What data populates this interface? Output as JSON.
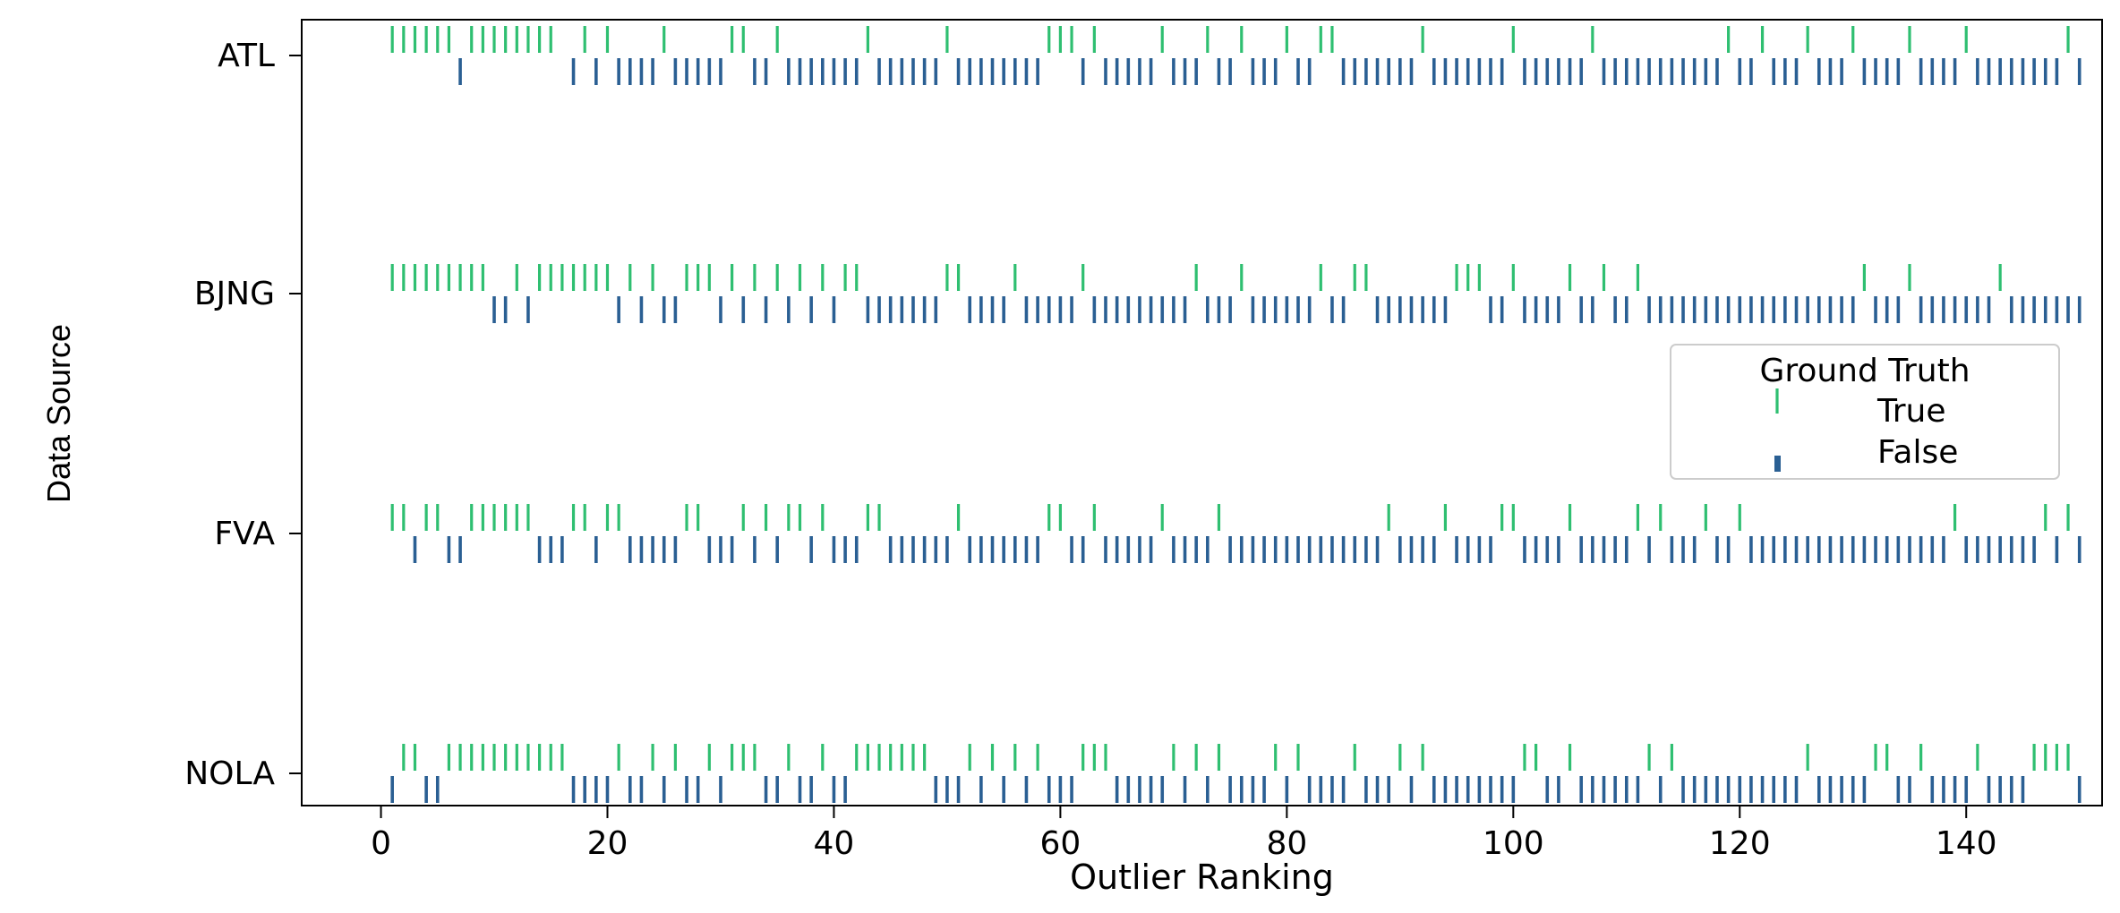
{
  "chart_data": {
    "type": "strip",
    "xlabel": "Outlier Ranking",
    "ylabel": "Data Source",
    "xlim": [
      -7,
      152
    ],
    "x_ticks": [
      0,
      20,
      40,
      60,
      80,
      100,
      120,
      140
    ],
    "categories": [
      "ATL",
      "BJNG",
      "FVA",
      "NOLA"
    ],
    "legend": {
      "title": "Ground Truth",
      "placement": "right",
      "entries": [
        {
          "label": "True",
          "color": "#2fbf71"
        },
        {
          "label": "False",
          "color": "#2a5f93"
        }
      ]
    },
    "series": [
      {
        "category": "ATL",
        "true": [
          1,
          2,
          3,
          4,
          5,
          6,
          8,
          9,
          10,
          11,
          12,
          13,
          14,
          15,
          18,
          20,
          25,
          31,
          32,
          35,
          43,
          50,
          59,
          60,
          61,
          63,
          69,
          73,
          76,
          80,
          83,
          84,
          92,
          100,
          107,
          119,
          122,
          126,
          130,
          135,
          140,
          149
        ],
        "false": [
          7,
          17,
          19,
          21,
          22,
          23,
          24,
          26,
          27,
          28,
          29,
          30,
          33,
          34,
          36,
          37,
          38,
          39,
          40,
          41,
          42,
          44,
          45,
          46,
          47,
          48,
          49,
          51,
          52,
          53,
          54,
          55,
          56,
          57,
          58,
          62,
          64,
          65,
          66,
          67,
          68,
          70,
          71,
          72,
          74,
          75,
          77,
          78,
          79,
          81,
          82,
          85,
          86,
          87,
          88,
          89,
          90,
          91,
          93,
          94,
          95,
          96,
          97,
          98,
          99,
          101,
          102,
          103,
          104,
          105,
          106,
          108,
          109,
          110,
          111,
          112,
          113,
          114,
          115,
          116,
          117,
          118,
          120,
          121,
          123,
          124,
          125,
          127,
          128,
          129,
          131,
          132,
          133,
          134,
          136,
          137,
          138,
          139,
          141,
          142,
          143,
          144,
          145,
          146,
          147,
          148,
          150
        ]
      },
      {
        "category": "BJNG",
        "true": [
          1,
          2,
          3,
          4,
          5,
          6,
          7,
          8,
          9,
          12,
          14,
          15,
          16,
          17,
          18,
          19,
          20,
          22,
          24,
          27,
          28,
          29,
          31,
          33,
          35,
          37,
          39,
          41,
          42,
          50,
          51,
          56,
          62,
          72,
          76,
          83,
          86,
          87,
          95,
          96,
          97,
          100,
          105,
          108,
          111,
          131,
          135,
          143
        ],
        "false": [
          10,
          11,
          13,
          21,
          23,
          25,
          26,
          30,
          32,
          34,
          36,
          38,
          40,
          43,
          44,
          45,
          46,
          47,
          48,
          49,
          52,
          53,
          54,
          55,
          57,
          58,
          59,
          60,
          61,
          63,
          64,
          65,
          66,
          67,
          68,
          69,
          70,
          71,
          73,
          74,
          75,
          77,
          78,
          79,
          80,
          81,
          82,
          84,
          85,
          88,
          89,
          90,
          91,
          92,
          93,
          94,
          98,
          99,
          101,
          102,
          103,
          104,
          106,
          107,
          109,
          110,
          112,
          113,
          114,
          115,
          116,
          117,
          118,
          119,
          120,
          121,
          122,
          123,
          124,
          125,
          126,
          127,
          128,
          129,
          130,
          132,
          133,
          134,
          136,
          137,
          138,
          139,
          140,
          141,
          142,
          144,
          145,
          146,
          147,
          148,
          149,
          150
        ]
      },
      {
        "category": "FVA",
        "true": [
          1,
          2,
          4,
          5,
          8,
          9,
          10,
          11,
          12,
          13,
          17,
          18,
          20,
          21,
          27,
          28,
          32,
          34,
          36,
          37,
          39,
          43,
          44,
          51,
          59,
          60,
          63,
          69,
          74,
          89,
          94,
          99,
          100,
          105,
          111,
          113,
          117,
          120,
          139,
          147,
          149
        ],
        "false": [
          3,
          6,
          7,
          14,
          15,
          16,
          19,
          22,
          23,
          24,
          25,
          26,
          29,
          30,
          31,
          33,
          35,
          38,
          40,
          41,
          42,
          45,
          46,
          47,
          48,
          49,
          50,
          52,
          53,
          54,
          55,
          56,
          57,
          58,
          61,
          62,
          64,
          65,
          66,
          67,
          68,
          70,
          71,
          72,
          73,
          75,
          76,
          77,
          78,
          79,
          80,
          81,
          82,
          83,
          84,
          85,
          86,
          87,
          88,
          90,
          91,
          92,
          93,
          95,
          96,
          97,
          98,
          101,
          102,
          103,
          104,
          106,
          107,
          108,
          109,
          110,
          112,
          114,
          115,
          116,
          118,
          119,
          121,
          122,
          123,
          124,
          125,
          126,
          127,
          128,
          129,
          130,
          131,
          132,
          133,
          134,
          135,
          136,
          137,
          138,
          140,
          141,
          142,
          143,
          144,
          145,
          146,
          148,
          150
        ]
      },
      {
        "category": "NOLA",
        "true": [
          2,
          3,
          6,
          7,
          8,
          9,
          10,
          11,
          12,
          13,
          14,
          15,
          16,
          21,
          24,
          26,
          29,
          31,
          32,
          33,
          36,
          39,
          42,
          43,
          44,
          45,
          46,
          47,
          48,
          52,
          54,
          56,
          58,
          62,
          63,
          64,
          70,
          72,
          74,
          79,
          81,
          86,
          90,
          92,
          101,
          102,
          105,
          112,
          114,
          126,
          132,
          133,
          136,
          141,
          146,
          147,
          148,
          149
        ],
        "false": [
          1,
          4,
          5,
          17,
          18,
          19,
          20,
          22,
          23,
          25,
          27,
          28,
          30,
          34,
          35,
          37,
          38,
          40,
          41,
          49,
          50,
          51,
          53,
          55,
          57,
          59,
          60,
          61,
          65,
          66,
          67,
          68,
          69,
          71,
          73,
          75,
          76,
          77,
          78,
          80,
          82,
          83,
          84,
          85,
          87,
          88,
          89,
          91,
          93,
          94,
          95,
          96,
          97,
          98,
          99,
          100,
          103,
          104,
          106,
          107,
          108,
          109,
          110,
          111,
          113,
          115,
          116,
          117,
          118,
          119,
          120,
          121,
          122,
          123,
          124,
          125,
          127,
          128,
          129,
          130,
          131,
          134,
          135,
          137,
          138,
          139,
          140,
          142,
          143,
          144,
          145,
          150
        ]
      }
    ]
  }
}
